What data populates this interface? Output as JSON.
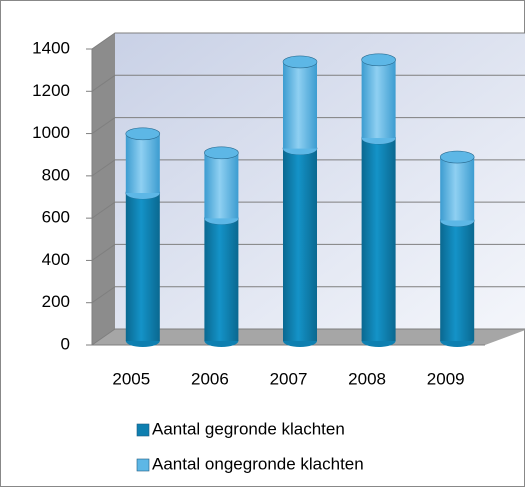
{
  "chart_data": {
    "type": "bar",
    "stacked": true,
    "categories": [
      "2005",
      "2006",
      "2007",
      "2008",
      "2009"
    ],
    "series": [
      {
        "name": "Aantal gegronde klachten",
        "color": "#0e7fb0",
        "values": [
          700,
          580,
          910,
          960,
          570
        ]
      },
      {
        "name": "Aantal ongegronde klachten",
        "color": "#5db7e6",
        "values": [
          280,
          310,
          410,
          370,
          300
        ]
      }
    ],
    "ylim": [
      0,
      1400
    ],
    "yticks": [
      0,
      200,
      400,
      600,
      800,
      1000,
      1200,
      1400
    ],
    "grid": true
  }
}
